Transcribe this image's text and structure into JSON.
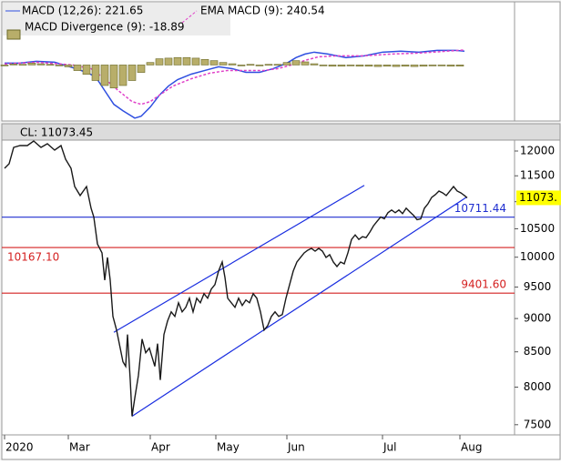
{
  "chart_data": [
    {
      "type": "line",
      "xlim": [
        -3,
        560
      ],
      "ylim": [
        -900,
        1000
      ],
      "series": [
        {
          "name": "MACD (12,26): 221.65",
          "style": "solid",
          "color": "#2f4fe0",
          "x": [
            0,
            15,
            35,
            55,
            75,
            90,
            100,
            110,
            120,
            130,
            143,
            150,
            160,
            170,
            180,
            190,
            205,
            220,
            235,
            250,
            265,
            280,
            295,
            310,
            320,
            330,
            340,
            355,
            375,
            395,
            415,
            435,
            455,
            475,
            495,
            505
          ],
          "values": [
            29,
            29,
            59,
            44,
            -44,
            -118,
            -191,
            -412,
            -632,
            -735,
            -853,
            -823,
            -676,
            -485,
            -338,
            -235,
            -147,
            -88,
            -29,
            -59,
            -118,
            -118,
            -59,
            29,
            118,
            176,
            206,
            176,
            118,
            147,
            206,
            221,
            206,
            235,
            235,
            221.65
          ]
        },
        {
          "name": "EMA MACD (9): 240.54",
          "style": "dashed",
          "color": "#e040c8",
          "x": [
            0,
            35,
            75,
            95,
            110,
            125,
            140,
            150,
            160,
            170,
            185,
            205,
            225,
            245,
            265,
            285,
            300,
            315,
            330,
            345,
            365,
            395,
            425,
            455,
            485,
            505
          ],
          "values": [
            15,
            44,
            0,
            -59,
            -221,
            -412,
            -588,
            -632,
            -588,
            -485,
            -338,
            -221,
            -132,
            -88,
            -88,
            -88,
            -59,
            0,
            74,
            132,
            147,
            147,
            176,
            191,
            221,
            240.54
          ]
        },
        {
          "name": "MACD Divergence (9): -18.89",
          "style": "bar",
          "color": "#b8ae6a",
          "x": [
            0,
            10,
            20,
            30,
            40,
            50,
            60,
            70,
            80,
            90,
            100,
            110,
            120,
            130,
            140,
            150,
            160,
            170,
            180,
            190,
            200,
            210,
            220,
            230,
            240,
            250,
            260,
            270,
            280,
            290,
            300,
            310,
            320,
            330,
            340,
            350,
            360,
            370,
            380,
            390,
            400,
            410,
            420,
            430,
            440,
            450,
            460,
            470,
            480,
            490,
            500
          ],
          "values": [
            -15,
            15,
            10,
            30,
            20,
            10,
            -10,
            -30,
            -90,
            -150,
            -250,
            -330,
            -370,
            -330,
            -250,
            -120,
            40,
            100,
            110,
            120,
            120,
            110,
            90,
            70,
            40,
            20,
            0,
            10,
            0,
            10,
            10,
            40,
            70,
            50,
            20,
            0,
            -20,
            -20,
            -15,
            -20,
            -20,
            -25,
            -20,
            -25,
            -20,
            -25,
            -20,
            -15,
            -10,
            -20,
            -18.89
          ]
        }
      ]
    },
    {
      "type": "line",
      "title": "CL: 11073.45",
      "log": true,
      "color": "#1a1a1a",
      "xlim": [
        -3,
        560
      ],
      "ylim": [
        7370,
        12208
      ],
      "yticks": [
        7500,
        8000,
        8500,
        9000,
        9500,
        10000,
        10500,
        11000,
        11500,
        12000
      ],
      "xticks": [
        {
          "value": 0,
          "label": "2020"
        },
        {
          "value": 70,
          "label": "Mar"
        },
        {
          "value": 160,
          "label": "Apr"
        },
        {
          "value": 232,
          "label": "May"
        },
        {
          "value": 310,
          "label": "Jun"
        },
        {
          "value": 415,
          "label": "Jul"
        },
        {
          "value": 500,
          "label": "Aug"
        }
      ],
      "x": [
        0,
        5,
        10,
        17,
        25,
        32,
        40,
        47,
        55,
        62,
        67,
        73,
        77,
        83,
        90,
        95,
        98,
        102,
        107,
        110,
        113,
        116,
        119,
        123,
        127,
        130,
        133,
        135,
        138,
        140,
        143,
        147,
        151,
        155,
        159,
        162,
        165,
        168,
        171,
        175,
        179,
        183,
        187,
        191,
        195,
        199,
        203,
        207,
        211,
        215,
        219,
        223,
        227,
        231,
        235,
        239,
        242,
        245,
        249,
        253,
        257,
        261,
        265,
        269,
        273,
        277,
        281,
        285,
        289,
        293,
        297,
        301,
        305,
        309,
        313,
        317,
        321,
        325,
        329,
        333,
        337,
        341,
        345,
        349,
        353,
        357,
        361,
        365,
        369,
        373,
        377,
        381,
        385,
        389,
        393,
        397,
        401,
        405,
        409,
        413,
        417,
        421,
        425,
        429,
        433,
        437,
        441,
        445,
        449,
        453,
        457,
        461,
        465,
        469,
        473,
        477,
        481,
        485,
        489,
        493,
        497,
        501,
        505,
        508
      ],
      "values": [
        11648,
        11740,
        12075,
        12113,
        12113,
        12208,
        12075,
        12151,
        12019,
        12113,
        11833,
        11648,
        11290,
        11117,
        11290,
        10877,
        10714,
        10230,
        10074,
        9614,
        9996,
        9614,
        9033,
        8824,
        8554,
        8356,
        8291,
        8756,
        8099,
        7610,
        7851,
        8163,
        8688,
        8487,
        8554,
        8421,
        8291,
        8621,
        8099,
        8756,
        8963,
        9104,
        9033,
        9247,
        9104,
        9175,
        9320,
        9104,
        9320,
        9247,
        9393,
        9320,
        9467,
        9540,
        9765,
        9918,
        9660,
        9320,
        9247,
        9175,
        9320,
        9204,
        9291,
        9247,
        9393,
        9320,
        9104,
        8824,
        8893,
        9033,
        9104,
        9033,
        9061,
        9320,
        9540,
        9765,
        9918,
        9996,
        10074,
        10121,
        10152,
        10105,
        10152,
        10105,
        9996,
        10043,
        9918,
        9841,
        9918,
        9887,
        10074,
        10310,
        10390,
        10310,
        10358,
        10342,
        10437,
        10551,
        10634,
        10714,
        10681,
        10794,
        10844,
        10794,
        10844,
        10778,
        10877,
        10810,
        10746,
        10665,
        10681,
        10877,
        10962,
        11082,
        11134,
        11203,
        11168,
        11117,
        11203,
        11290,
        11203,
        11168,
        11117,
        11073.45
      ],
      "last_value": {
        "value": 11073.45,
        "label": "11073.",
        "color": "#ffff00"
      },
      "levels": [
        {
          "value": 10711.44,
          "color": "#1f2fd0"
        },
        {
          "value": 10167.1,
          "label": "10167.10",
          "color": "#d42020"
        },
        {
          "value": 9401.6,
          "label": "9401.60",
          "color": "#d42020"
        }
      ],
      "trendlines": [
        {
          "color": "#1a2ee0",
          "x": [
            120,
            395
          ],
          "values": [
            8790,
            11313
          ]
        },
        {
          "color": "#1a2ee0",
          "x": [
            140,
            507
          ],
          "values": [
            7610,
            11082
          ]
        }
      ]
    }
  ]
}
